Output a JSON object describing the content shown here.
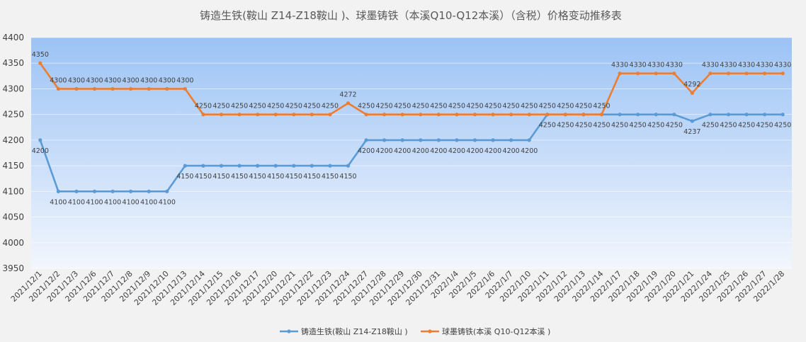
{
  "chart_data": {
    "type": "line",
    "title": "铸造生铁(鞍山 Z14-Z18鞍山 )、球墨铸铁（本溪Q10-Q12本溪）（含税）价格变动推移表",
    "xlabel": "",
    "ylabel": "",
    "ylim": [
      3950,
      4400
    ],
    "yticks": [
      3950,
      4000,
      4050,
      4100,
      4150,
      4200,
      4250,
      4300,
      4350,
      4400
    ],
    "grid": true,
    "legend_position": "bottom",
    "categories": [
      "2021/12/1",
      "2021/12/2",
      "2021/12/3",
      "2021/12/6",
      "2021/12/7",
      "2021/12/8",
      "2021/12/9",
      "2021/12/10",
      "2021/12/13",
      "2021/12/14",
      "2021/12/15",
      "2021/12/16",
      "2021/12/17",
      "2021/12/20",
      "2021/12/21",
      "2021/12/22",
      "2021/12/23",
      "2021/12/24",
      "2021/12/27",
      "2021/12/28",
      "2021/12/29",
      "2021/12/30",
      "2021/12/31",
      "2022/1/4",
      "2022/1/5",
      "2022/1/6",
      "2022/1/7",
      "2022/1/10",
      "2022/1/11",
      "2022/1/12",
      "2022/1/13",
      "2022/1/14",
      "2022/1/17",
      "2022/1/18",
      "2022/1/19",
      "2022/1/20",
      "2022/1/21",
      "2022/1/24",
      "2022/1/25",
      "2022/1/26",
      "2022/1/27",
      "2022/1/28"
    ],
    "series": [
      {
        "name": "铸造生铁(鞍山 Z14-Z18鞍山 )",
        "color": "#5b9bd5",
        "label_position": "below",
        "values": [
          4200,
          4100,
          4100,
          4100,
          4100,
          4100,
          4100,
          4100,
          4150,
          4150,
          4150,
          4150,
          4150,
          4150,
          4150,
          4150,
          4150,
          4150,
          4200,
          4200,
          4200,
          4200,
          4200,
          4200,
          4200,
          4200,
          4200,
          4200,
          4250,
          4250,
          4250,
          4250,
          4250,
          4250,
          4250,
          4250,
          4237,
          4250,
          4250,
          4250,
          4250,
          4250
        ]
      },
      {
        "name": "球墨铸铁(本溪 Q10-Q12本溪 )",
        "color": "#ed7d31",
        "label_position": "above",
        "values": [
          4350,
          4300,
          4300,
          4300,
          4300,
          4300,
          4300,
          4300,
          4300,
          4250,
          4250,
          4250,
          4250,
          4250,
          4250,
          4250,
          4250,
          4272,
          4250,
          4250,
          4250,
          4250,
          4250,
          4250,
          4250,
          4250,
          4250,
          4250,
          4250,
          4250,
          4250,
          4250,
          4330,
          4330,
          4330,
          4330,
          4292,
          4330,
          4330,
          4330,
          4330,
          4330
        ]
      }
    ]
  }
}
